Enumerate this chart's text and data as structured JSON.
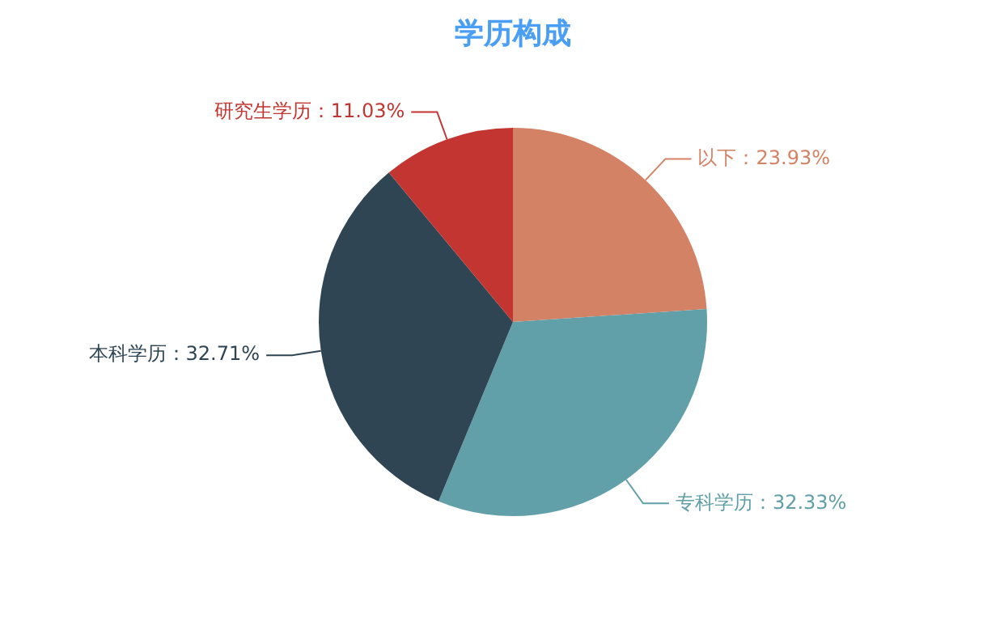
{
  "chart_data": {
    "type": "pie",
    "title": "学历构成",
    "categories": [
      "以下",
      "专科学历",
      "本科学历",
      "研究生学历"
    ],
    "values": [
      23.93,
      32.33,
      32.71,
      11.03
    ],
    "value_labels": [
      "23.93%",
      "32.33%",
      "32.71%",
      "11.03%"
    ],
    "colors": [
      "#d48265",
      "#61a0a8",
      "#2f4554",
      "#c23531"
    ],
    "legend": false
  }
}
